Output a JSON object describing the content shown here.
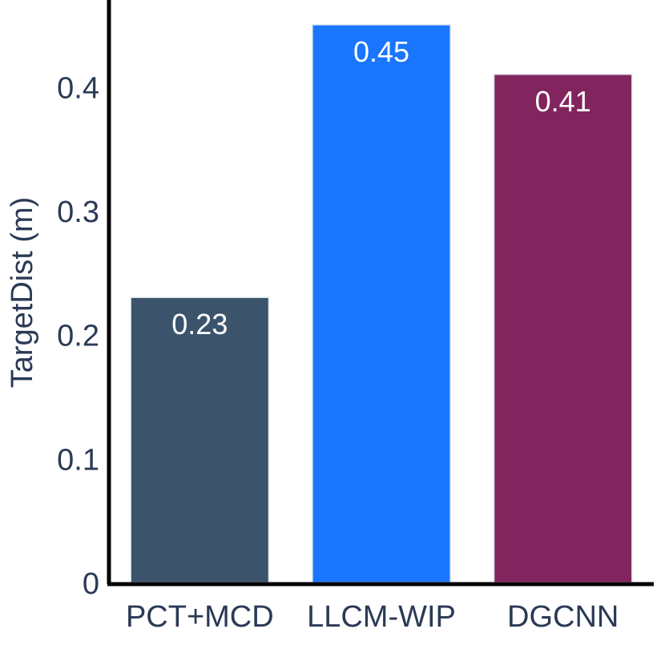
{
  "chart_data": {
    "type": "bar",
    "title": "",
    "xlabel": "",
    "ylabel": "TargetDist (m)",
    "ylim": [
      0,
      0.47
    ],
    "yticks": [
      0,
      0.1,
      0.2,
      0.3,
      0.4
    ],
    "ytick_labels": [
      "0",
      "0.1",
      "0.2",
      "0.3",
      "0.4"
    ],
    "grid": false,
    "categories": [
      "PCT+MCD",
      "LLCM-WIP",
      "DGCNN"
    ],
    "values": [
      0.23,
      0.45,
      0.41
    ],
    "value_labels": [
      "0.23",
      "0.45",
      "0.41"
    ],
    "colors": [
      "#3b546b",
      "#1a75ff",
      "#82245d"
    ]
  }
}
